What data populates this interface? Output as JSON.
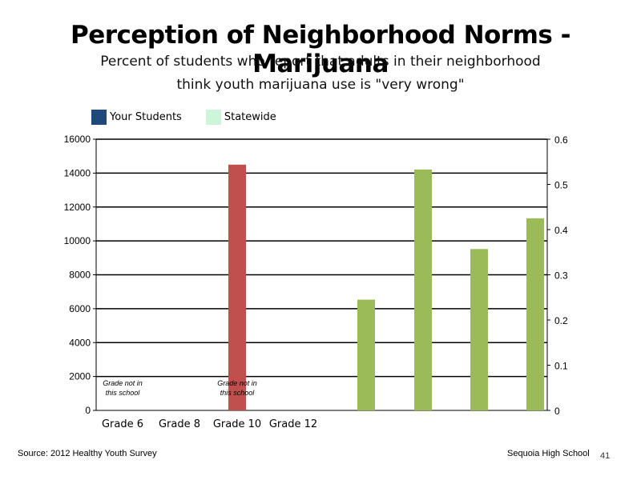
{
  "page": {
    "title": "Perception of Neighborhood Norms - Marijuana",
    "subtitle_line1": "Percent of students who report that adults in their neighborhood",
    "subtitle_line2": "think youth marijuana use is \"very wrong\"",
    "source": "Source: 2012 Healthy Youth Survey",
    "school": "Sequoia High School",
    "page_number": "41"
  },
  "chart_data": {
    "type": "bar",
    "legend": [
      {
        "name": "Your Students",
        "color": "#1f497d"
      },
      {
        "name": "Statewide",
        "color": "#ccf5d9"
      }
    ],
    "legend_position": "top-left",
    "categories": [
      "Grade 6",
      "Grade 8",
      "Grade 10",
      "Grade 12"
    ],
    "left_axis": {
      "ylim": [
        0,
        16000
      ],
      "ticks": [
        "0",
        "2000",
        "4000",
        "6000",
        "8000",
        "10000",
        "12000",
        "14000",
        "16000"
      ]
    },
    "right_axis": {
      "ylim": [
        0,
        0.6
      ],
      "ticks": [
        "0",
        "0.1",
        "0.2",
        "0.3",
        "0.4",
        "0.5",
        "0.6"
      ]
    },
    "grid": true,
    "series": [
      {
        "axis": "left",
        "color": "#c0504d",
        "values": [
          null,
          null,
          14500,
          null
        ]
      },
      {
        "axis": "right",
        "color": "#9bbb59",
        "values": [
          0.245,
          0.533,
          0.357,
          0.425
        ]
      }
    ],
    "annotations": [
      {
        "category_index": 0,
        "line1": "Grade not in",
        "line2": "this school"
      },
      {
        "category_index": 2,
        "line1": "Grade not in",
        "line2": "this school"
      }
    ]
  }
}
